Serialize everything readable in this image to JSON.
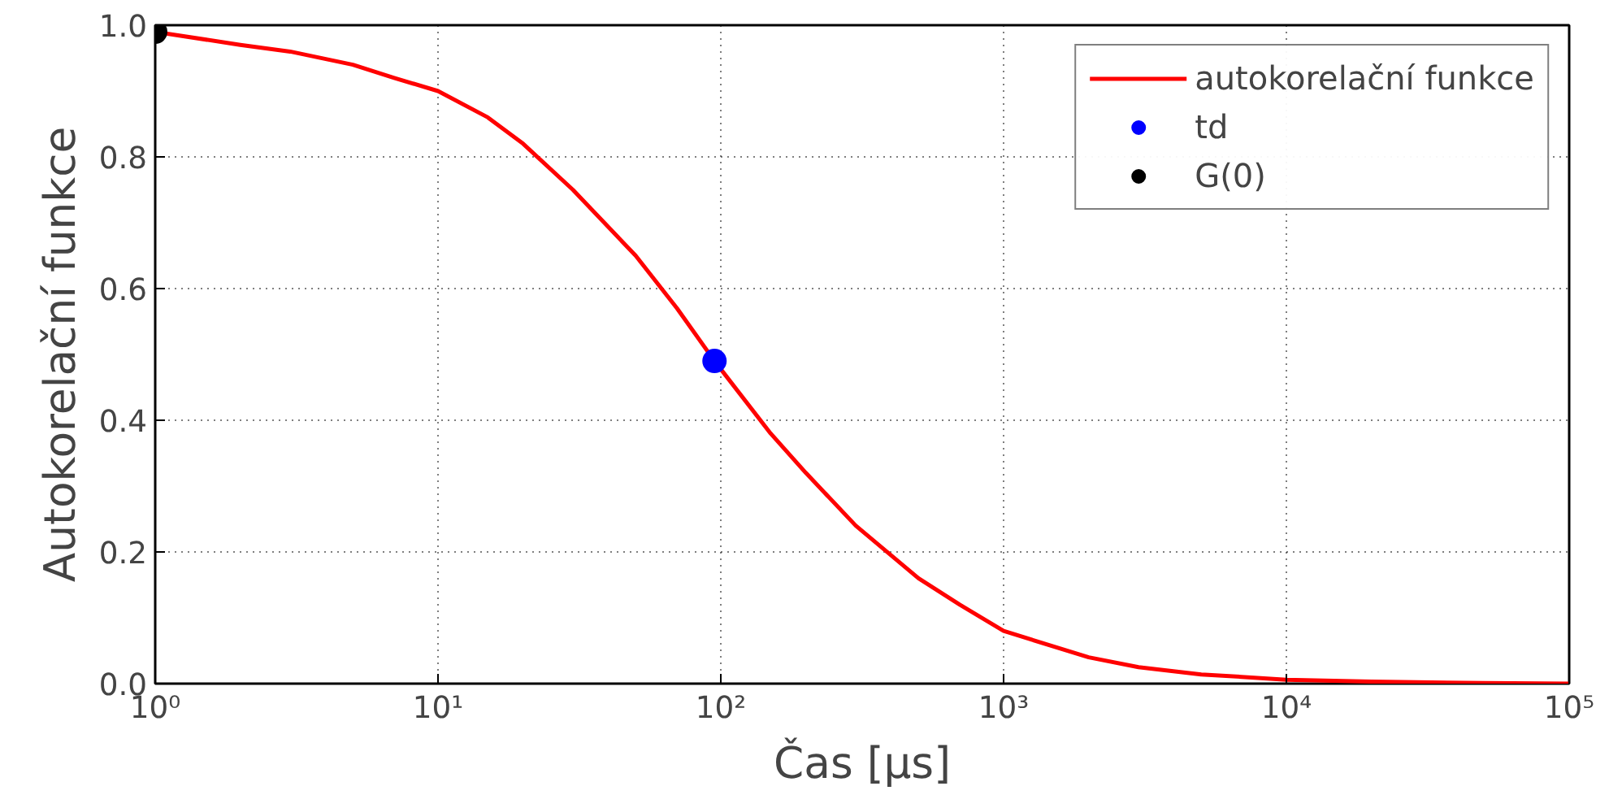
{
  "chart_data": {
    "type": "line",
    "xlabel": "Čas [μs]",
    "ylabel": "Autokorelační funkce",
    "log": "x",
    "grid": true,
    "legend": "top right",
    "xlim": [
      1,
      100000
    ],
    "ylim": [
      0,
      1
    ],
    "xticks": [
      {
        "value": 1,
        "label": "10⁰"
      },
      {
        "value": 10,
        "label": "10¹"
      },
      {
        "value": 100,
        "label": "10²"
      },
      {
        "value": 1000,
        "label": "10³"
      },
      {
        "value": 10000,
        "label": "10⁴"
      },
      {
        "value": 100000,
        "label": "10⁵"
      }
    ],
    "yticks": [
      {
        "value": 0,
        "label": "0.0"
      },
      {
        "value": 0.2,
        "label": "0.2"
      },
      {
        "value": 0.4,
        "label": "0.4"
      },
      {
        "value": 0.6,
        "label": "0.6"
      },
      {
        "value": 0.8,
        "label": "0.8"
      },
      {
        "value": 1,
        "label": "1.0"
      }
    ],
    "series": [
      {
        "name": "autokorelační funkce",
        "color": "#ff0000",
        "marker": "none",
        "x": [
          1,
          2,
          3,
          5,
          7,
          10,
          15,
          20,
          30,
          50,
          70,
          95,
          150,
          200,
          300,
          500,
          700,
          1000,
          2000,
          3000,
          5000,
          10000,
          20000,
          50000,
          100000
        ],
        "values": [
          0.99,
          0.97,
          0.96,
          0.94,
          0.92,
          0.9,
          0.86,
          0.82,
          0.75,
          0.65,
          0.57,
          0.49,
          0.38,
          0.32,
          0.24,
          0.16,
          0.12,
          0.08,
          0.04,
          0.025,
          0.014,
          0.006,
          0.003,
          0.001,
          0.0
        ]
      },
      {
        "name": "td",
        "type": "scatter",
        "color": "#0000ff",
        "marker": "circle",
        "x": [
          95
        ],
        "values": [
          0.49
        ]
      },
      {
        "name": "G(0)",
        "type": "scatter",
        "color": "#000000",
        "marker": "circle",
        "x": [
          1
        ],
        "values": [
          0.99
        ]
      }
    ]
  }
}
